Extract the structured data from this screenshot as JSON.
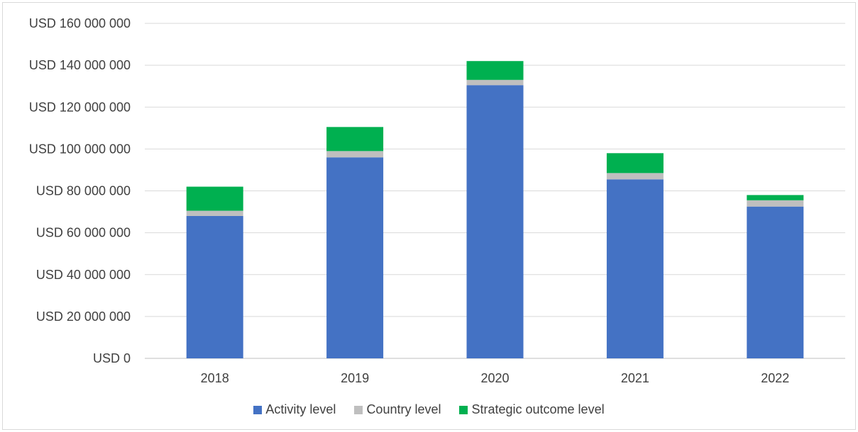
{
  "chart_data": {
    "type": "bar",
    "stacked": true,
    "title": "",
    "xlabel": "",
    "ylabel": "",
    "categories": [
      "2018",
      "2019",
      "2020",
      "2021",
      "2022"
    ],
    "series": [
      {
        "name": "Activity level",
        "color": "#4472c4",
        "values": [
          68000000,
          96000000,
          130500000,
          85500000,
          72500000
        ]
      },
      {
        "name": "Country level",
        "color": "#bfbfbf",
        "values": [
          2500000,
          3000000,
          2500000,
          3000000,
          3000000
        ]
      },
      {
        "name": "Strategic outcome level",
        "color": "#00b050",
        "values": [
          11500000,
          11500000,
          9000000,
          9500000,
          2500000
        ]
      }
    ],
    "ylim": [
      0,
      160000000
    ],
    "y_ticks": [
      {
        "value": 0,
        "label": "USD 0"
      },
      {
        "value": 20000000,
        "label": "USD 20 000 000"
      },
      {
        "value": 40000000,
        "label": "USD 40 000 000"
      },
      {
        "value": 60000000,
        "label": "USD 60 000 000"
      },
      {
        "value": 80000000,
        "label": "USD 80 000 000"
      },
      {
        "value": 100000000,
        "label": "USD 100 000 000"
      },
      {
        "value": 120000000,
        "label": "USD 120 000 000"
      },
      {
        "value": 140000000,
        "label": "USD 140 000 000"
      },
      {
        "value": 160000000,
        "label": "USD 160 000 000"
      }
    ],
    "grid": true,
    "legend_position": "bottom"
  }
}
